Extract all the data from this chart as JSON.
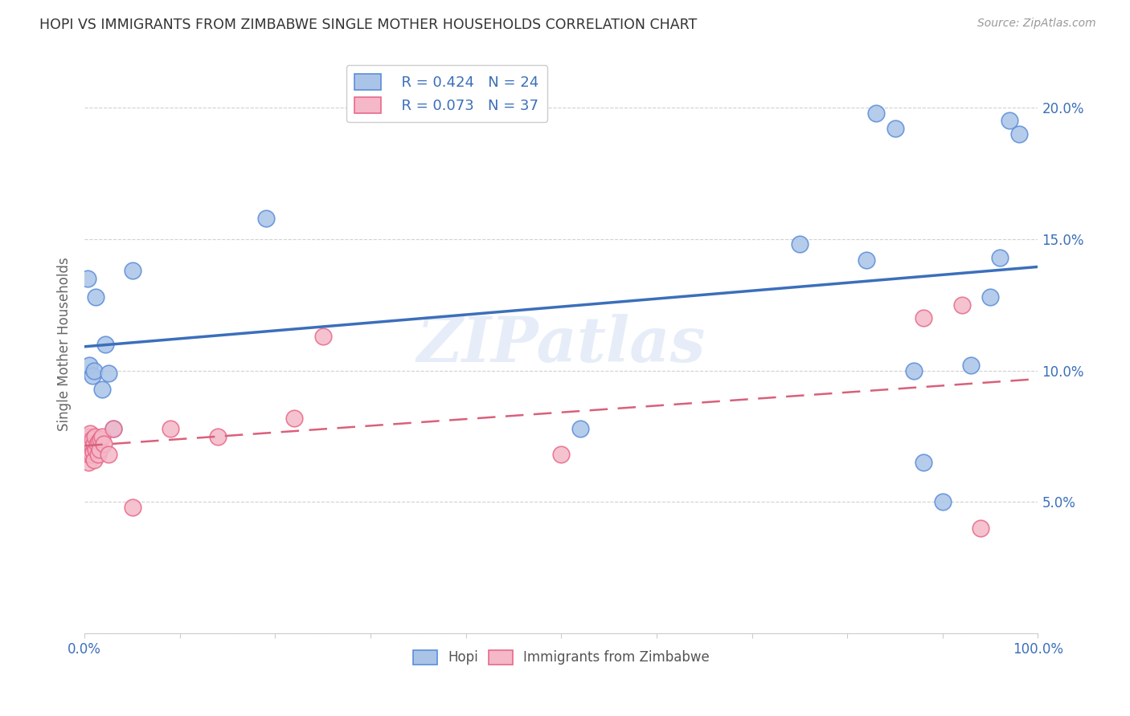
{
  "title": "HOPI VS IMMIGRANTS FROM ZIMBABWE SINGLE MOTHER HOUSEHOLDS CORRELATION CHART",
  "source": "Source: ZipAtlas.com",
  "ylabel": "Single Mother Households",
  "xlim": [
    0,
    1.0
  ],
  "ylim": [
    0,
    0.22
  ],
  "yticks": [
    0.0,
    0.05,
    0.1,
    0.15,
    0.2
  ],
  "ytick_labels": [
    "",
    "5.0%",
    "10.0%",
    "15.0%",
    "20.0%"
  ],
  "xticks": [
    0.0,
    0.1,
    0.2,
    0.3,
    0.4,
    0.5,
    0.6,
    0.7,
    0.8,
    0.9,
    1.0
  ],
  "xtick_labels": [
    "0.0%",
    "",
    "",
    "",
    "",
    "",
    "",
    "",
    "",
    "",
    "100.0%"
  ],
  "hopi_R": 0.424,
  "hopi_N": 24,
  "zimb_R": 0.073,
  "zimb_N": 37,
  "hopi_color": "#aac4e8",
  "hopi_edge_color": "#5b8dd9",
  "zimb_color": "#f4b8c8",
  "zimb_edge_color": "#e8698a",
  "hopi_line_color": "#3b6fba",
  "zimb_line_color": "#d9607a",
  "watermark": "ZIPatlas",
  "background_color": "#ffffff",
  "hopi_x": [
    0.003,
    0.005,
    0.008,
    0.01,
    0.012,
    0.018,
    0.022,
    0.025,
    0.03,
    0.05,
    0.19,
    0.52,
    0.75,
    0.82,
    0.83,
    0.85,
    0.87,
    0.88,
    0.9,
    0.93,
    0.95,
    0.96,
    0.97,
    0.98
  ],
  "hopi_y": [
    0.135,
    0.102,
    0.098,
    0.1,
    0.128,
    0.093,
    0.11,
    0.099,
    0.078,
    0.138,
    0.158,
    0.078,
    0.148,
    0.142,
    0.198,
    0.192,
    0.1,
    0.065,
    0.05,
    0.102,
    0.128,
    0.143,
    0.195,
    0.19
  ],
  "zimb_x": [
    0.001,
    0.002,
    0.002,
    0.003,
    0.003,
    0.004,
    0.004,
    0.005,
    0.005,
    0.006,
    0.006,
    0.007,
    0.007,
    0.008,
    0.009,
    0.01,
    0.01,
    0.011,
    0.012,
    0.013,
    0.014,
    0.015,
    0.016,
    0.017,
    0.018,
    0.02,
    0.025,
    0.03,
    0.05,
    0.09,
    0.14,
    0.22,
    0.25,
    0.5,
    0.88,
    0.92,
    0.94
  ],
  "zimb_y": [
    0.072,
    0.073,
    0.068,
    0.074,
    0.071,
    0.065,
    0.075,
    0.073,
    0.068,
    0.076,
    0.07,
    0.068,
    0.072,
    0.074,
    0.069,
    0.072,
    0.066,
    0.075,
    0.07,
    0.072,
    0.068,
    0.073,
    0.07,
    0.074,
    0.075,
    0.072,
    0.068,
    0.078,
    0.048,
    0.078,
    0.075,
    0.082,
    0.113,
    0.068,
    0.12,
    0.125,
    0.04
  ]
}
